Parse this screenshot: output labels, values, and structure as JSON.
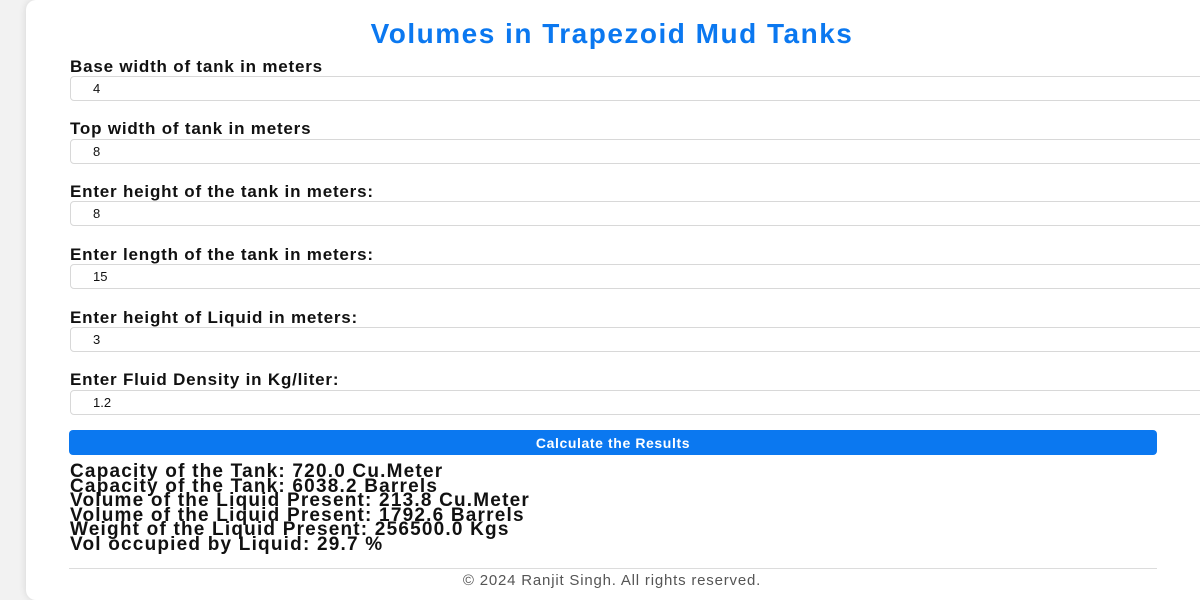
{
  "title": "Volumes in Trapezoid Mud Tanks",
  "fields": [
    {
      "label": "Base width of tank in meters",
      "value": "4"
    },
    {
      "label": "Top width of tank in meters",
      "value": "8"
    },
    {
      "label": "Enter height of the tank in meters:",
      "value": "8"
    },
    {
      "label": "Enter length of the tank in meters:",
      "value": "15"
    },
    {
      "label": "Enter height of Liquid in meters:",
      "value": "3"
    },
    {
      "label": "Enter Fluid Density in Kg/liter:",
      "value": "1.2"
    }
  ],
  "button_label": "Calculate the Results",
  "results": [
    "Capacity of the Tank: 720.0 Cu.Meter",
    "Capacity of the Tank: 6038.2 Barrels",
    "Volume of the Liquid Present: 213.8 Cu.Meter",
    "Volume of the Liquid Present: 1792.6 Barrels",
    "Weight of the Liquid Present: 256500.0 Kgs",
    "Vol occupied by Liquid: 29.7 %"
  ],
  "footer": "© 2024 Ranjit Singh. All rights reserved.",
  "colors": {
    "accent": "#0b78f0",
    "text": "#111111",
    "footer_text": "#555555"
  }
}
